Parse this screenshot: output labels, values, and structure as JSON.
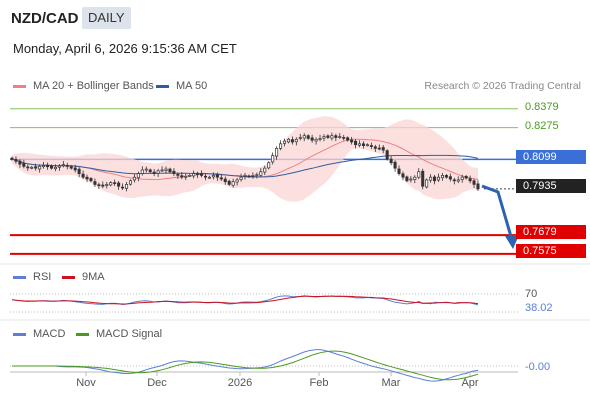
{
  "header": {
    "pair": "NZD/CAD",
    "period": "DAILY",
    "datetime": "Monday, April 6, 2026 9:15:36 AM CET"
  },
  "legend": {
    "bollinger": "MA 20 + Bollinger Bands",
    "ma50": "MA 50",
    "rsi": "RSI",
    "rsi_ma": "9MA",
    "macd": "MACD",
    "macd_signal": "MACD Signal"
  },
  "attribution": "Research © 2026 Trading Central",
  "colors": {
    "bollinger": "#f08080",
    "ma50": "#2f5e9e",
    "resistance": "#86c05c",
    "support": "#e00000",
    "pivot": "#3b6fd8",
    "rsi": "#5b7fd6",
    "rsi_ma": "#cc1122",
    "macd": "#5b7fd6",
    "macd_signal": "#4a9a1f",
    "arrow": "#2c62b0"
  },
  "levels": {
    "r2": "0.8379",
    "r1": "0.8275",
    "pivot": "0.8099",
    "last": "0.7935",
    "s1": "0.7679",
    "s2": "0.7575"
  },
  "rsi": {
    "level": "70",
    "value": "38.02"
  },
  "macd": {
    "value": "-0.00"
  },
  "xaxis": [
    "Nov",
    "Dec",
    "2026",
    "Feb",
    "Mar",
    "Apr"
  ],
  "chart_data": {
    "type": "candlestick",
    "ylim": [
      0.753,
      0.845
    ],
    "closes": [
      0.81,
      0.8088,
      0.8072,
      0.806,
      0.8052,
      0.8055,
      0.805,
      0.806,
      0.8065,
      0.8058,
      0.805,
      0.8055,
      0.8062,
      0.807,
      0.806,
      0.805,
      0.804,
      0.802,
      0.8,
      0.799,
      0.798,
      0.796,
      0.7955,
      0.795,
      0.796,
      0.797,
      0.7965,
      0.795,
      0.794,
      0.796,
      0.798,
      0.8,
      0.802,
      0.804,
      0.8045,
      0.803,
      0.802,
      0.8035,
      0.804,
      0.8045,
      0.803,
      0.802,
      0.801,
      0.8,
      0.8005,
      0.801,
      0.802,
      0.8015,
      0.801,
      0.8,
      0.8,
      0.801,
      0.8,
      0.799,
      0.7975,
      0.796,
      0.7975,
      0.7985,
      0.8,
      0.801,
      0.8005,
      0.801,
      0.8015,
      0.803,
      0.805,
      0.808,
      0.812,
      0.816,
      0.8185,
      0.82,
      0.821,
      0.8195,
      0.821,
      0.822,
      0.823,
      0.8215,
      0.8205,
      0.821,
      0.8215,
      0.8225,
      0.822,
      0.823,
      0.822,
      0.8225,
      0.822,
      0.8205,
      0.8195,
      0.818,
      0.8185,
      0.8175,
      0.818,
      0.817,
      0.816,
      0.816,
      0.815,
      0.81,
      0.808,
      0.805,
      0.802,
      0.8,
      0.798,
      0.799,
      0.8,
      0.803,
      0.795,
      0.7985,
      0.8,
      0.798,
      0.8,
      0.801,
      0.8,
      0.799,
      0.798,
      0.7985,
      0.8,
      0.7995,
      0.798,
      0.796,
      0.7935
    ],
    "indicators": {
      "ma20_upper_lower": "derived",
      "ma50": "derived",
      "rsi_last": 38.02,
      "macd_last": -0.0
    }
  }
}
